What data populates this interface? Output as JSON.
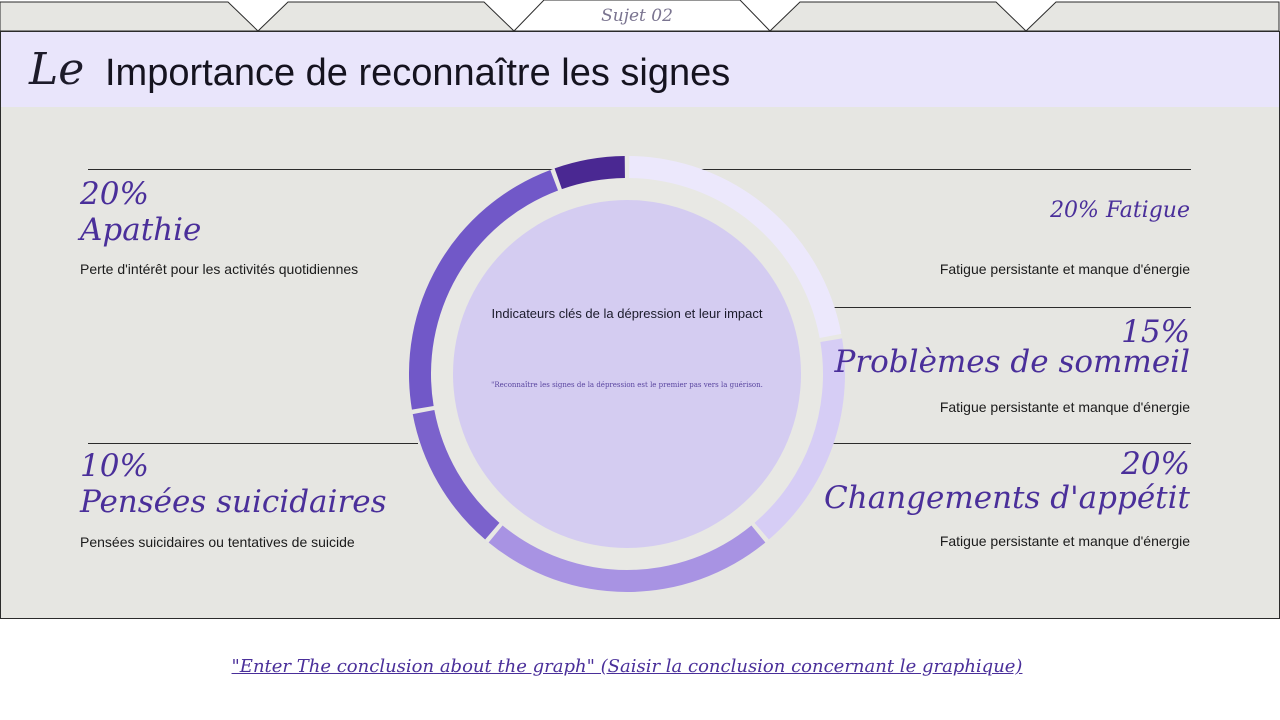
{
  "header": {
    "tab_label": "Sujet 02",
    "logo": "Le",
    "title": "Importance de reconnaître les signes"
  },
  "chart_data": {
    "type": "pie",
    "variant": "donut",
    "title": "Indicateurs clés de la dépression et leur impact",
    "quote": "\"Reconnaître les signes de la dépression est le premier pas vers la guérison.",
    "segments": [
      {
        "name": "Fatigue",
        "value": 20,
        "color": "#ece8fc"
      },
      {
        "name": "Problèmes de sommeil",
        "value": 15,
        "color": "#d6cdf5"
      },
      {
        "name": "Changements d'appétit",
        "value": 20,
        "color": "#a893e3"
      },
      {
        "name": "Pensées suicidaires",
        "value": 10,
        "color": "#7b62cc"
      },
      {
        "name": "Apathie",
        "value": 20,
        "color": "#7158c8"
      },
      {
        "name": "",
        "value": 5,
        "color": "#4a2892"
      }
    ]
  },
  "annotations": {
    "apathie": {
      "percent": "20%",
      "label": "Apathie",
      "desc": "Perte d'intérêt pour les activités quotidiennes"
    },
    "suicidaires": {
      "percent": "10%",
      "label": "Pensées suicidaires",
      "desc": "Pensées suicidaires ou tentatives de suicide"
    },
    "fatigue": {
      "label": "20% Fatigue",
      "desc": "Fatigue persistante et manque d'énergie"
    },
    "sommeil": {
      "percent": "15%",
      "label": "Problèmes de sommeil",
      "desc": "Fatigue persistante et manque d'énergie"
    },
    "appetit": {
      "percent": "20%",
      "label": "Changements d'appétit",
      "desc": "Fatigue persistante et manque d'énergie"
    }
  },
  "footer": {
    "conclusion": "\"Enter The conclusion about the graph\" (Saisir la conclusion concernant le graphique)"
  },
  "colors": {
    "accent": "#4a2f9a",
    "header_bg": "#e9e5fb",
    "panel_bg": "#e6e6e2",
    "inner_circle": "#d4ccf1"
  }
}
